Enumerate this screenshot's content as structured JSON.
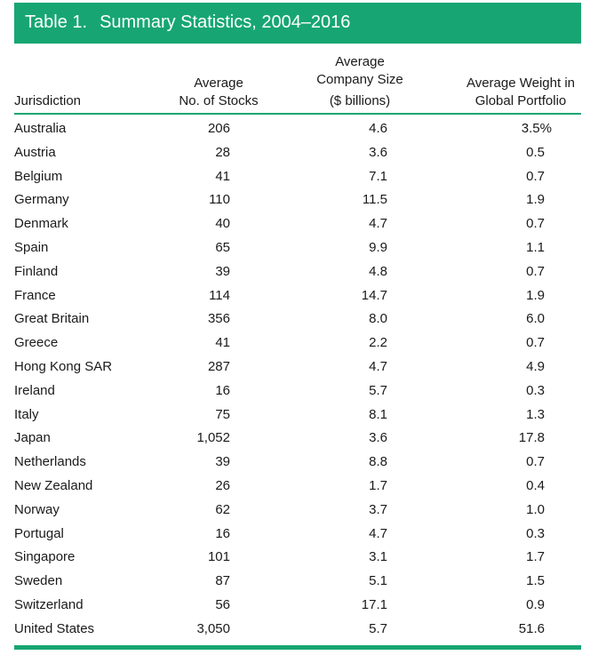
{
  "colors": {
    "accent": "#17a673",
    "text": "#1a1a1a"
  },
  "table": {
    "number": "Table 1.",
    "title": "Summary Statistics, 2004–2016",
    "columns": {
      "jurisdiction": "Jurisdiction",
      "stocks": [
        "Average",
        "No. of Stocks"
      ],
      "size": [
        "Average",
        "Company Size",
        "($ billions)"
      ],
      "weight": [
        "Average Weight in",
        "Global Portfolio"
      ]
    },
    "rows": [
      [
        "Australia",
        "206",
        "4.6",
        "3.5%"
      ],
      [
        "Austria",
        "28",
        "3.6",
        "0.5"
      ],
      [
        "Belgium",
        "41",
        "7.1",
        "0.7"
      ],
      [
        "Germany",
        "110",
        "11.5",
        "1.9"
      ],
      [
        "Denmark",
        "40",
        "4.7",
        "0.7"
      ],
      [
        "Spain",
        "65",
        "9.9",
        "1.1"
      ],
      [
        "Finland",
        "39",
        "4.8",
        "0.7"
      ],
      [
        "France",
        "114",
        "14.7",
        "1.9"
      ],
      [
        "Great Britain",
        "356",
        "8.0",
        "6.0"
      ],
      [
        "Greece",
        "41",
        "2.2",
        "0.7"
      ],
      [
        "Hong Kong SAR",
        "287",
        "4.7",
        "4.9"
      ],
      [
        "Ireland",
        "16",
        "5.7",
        "0.3"
      ],
      [
        "Italy",
        "75",
        "8.1",
        "1.3"
      ],
      [
        "Japan",
        "1,052",
        "3.6",
        "17.8"
      ],
      [
        "Netherlands",
        "39",
        "8.8",
        "0.7"
      ],
      [
        "New Zealand",
        "26",
        "1.7",
        "0.4"
      ],
      [
        "Norway",
        "62",
        "3.7",
        "1.0"
      ],
      [
        "Portugal",
        "16",
        "4.7",
        "0.3"
      ],
      [
        "Singapore",
        "101",
        "3.1",
        "1.7"
      ],
      [
        "Sweden",
        "87",
        "5.1",
        "1.5"
      ],
      [
        "Switzerland",
        "56",
        "17.1",
        "0.9"
      ],
      [
        "United States",
        "3,050",
        "5.7",
        "51.6"
      ]
    ]
  }
}
